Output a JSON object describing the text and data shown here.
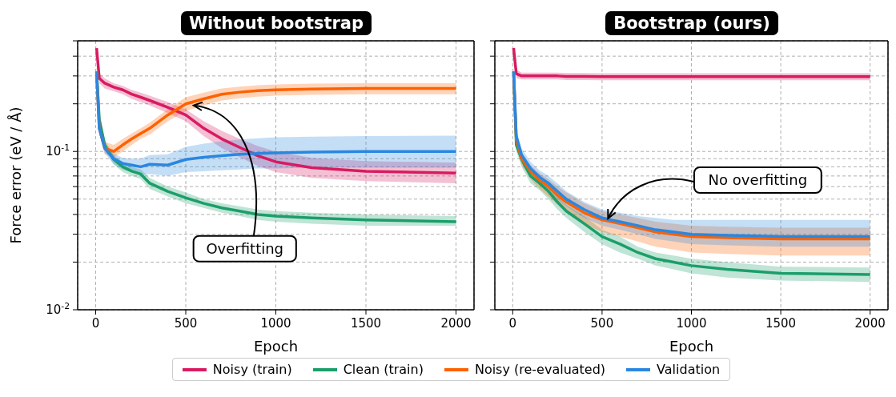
{
  "chart_data": [
    {
      "type": "line",
      "title": "Without bootstrap",
      "xlabel": "Epoch",
      "ylabel": "Force error (eV / Å)",
      "log": "y",
      "grid": true,
      "legend": "bottom",
      "xlim": [
        -100,
        2100
      ],
      "xticks": [
        0,
        500,
        1000,
        1500,
        2000
      ],
      "ylim": [
        0.01,
        0.5
      ],
      "yticks": [
        {
          "value": 0.01,
          "label": "10$^{-2}$"
        },
        {
          "value": 0.02,
          "label": null
        },
        {
          "value": 0.03,
          "label": null
        },
        {
          "value": 0.04,
          "label": null
        },
        {
          "value": 0.05,
          "label": null
        },
        {
          "value": 0.06,
          "label": null
        },
        {
          "value": 0.07,
          "label": null
        },
        {
          "value": 0.08,
          "label": null
        },
        {
          "value": 0.09,
          "label": null
        },
        {
          "value": 0.1,
          "label": "10$^{-1}$"
        },
        {
          "value": 0.2,
          "label": null
        },
        {
          "value": 0.3,
          "label": null
        },
        {
          "value": 0.4,
          "label": null
        },
        {
          "value": 0.5,
          "label": null
        }
      ],
      "x": [
        5,
        20,
        50,
        100,
        150,
        200,
        250,
        300,
        400,
        500,
        600,
        700,
        800,
        900,
        1000,
        1200,
        1500,
        2000
      ],
      "series": [
        {
          "name": "Noisy (train)",
          "color": "#d81b60",
          "values": [
            0.45,
            0.29,
            0.27,
            0.255,
            0.245,
            0.23,
            0.22,
            0.21,
            0.19,
            0.17,
            0.14,
            0.12,
            0.106,
            0.094,
            0.086,
            0.079,
            0.075,
            0.073
          ],
          "lower": [
            0.42,
            0.27,
            0.25,
            0.24,
            0.23,
            0.215,
            0.205,
            0.195,
            0.175,
            0.155,
            0.125,
            0.105,
            0.092,
            0.081,
            0.074,
            0.068,
            0.065,
            0.063
          ],
          "upper": [
            0.48,
            0.31,
            0.29,
            0.27,
            0.26,
            0.245,
            0.235,
            0.225,
            0.205,
            0.185,
            0.155,
            0.135,
            0.12,
            0.108,
            0.1,
            0.091,
            0.087,
            0.085
          ]
        },
        {
          "name": "Clean (train)",
          "color": "#1b9e6a",
          "values": [
            0.32,
            0.16,
            0.11,
            0.089,
            0.08,
            0.075,
            0.072,
            0.063,
            0.056,
            0.051,
            0.047,
            0.044,
            0.042,
            0.04,
            0.039,
            0.038,
            0.037,
            0.036
          ],
          "lower": [
            0.3,
            0.15,
            0.102,
            0.083,
            0.074,
            0.07,
            0.067,
            0.058,
            0.052,
            0.047,
            0.044,
            0.041,
            0.039,
            0.037,
            0.036,
            0.035,
            0.034,
            0.034
          ],
          "upper": [
            0.34,
            0.17,
            0.118,
            0.095,
            0.086,
            0.08,
            0.077,
            0.068,
            0.06,
            0.055,
            0.05,
            0.047,
            0.045,
            0.043,
            0.042,
            0.041,
            0.04,
            0.039
          ]
        },
        {
          "name": "Noisy (re-evaluated)",
          "color": "#fe6100",
          "values": [
            0.32,
            0.14,
            0.105,
            0.1,
            0.11,
            0.12,
            0.13,
            0.14,
            0.17,
            0.2,
            0.215,
            0.23,
            0.237,
            0.242,
            0.245,
            0.248,
            0.25,
            0.25
          ],
          "lower": [
            0.29,
            0.13,
            0.096,
            0.092,
            0.1,
            0.11,
            0.12,
            0.128,
            0.155,
            0.18,
            0.195,
            0.21,
            0.217,
            0.222,
            0.225,
            0.228,
            0.23,
            0.23
          ],
          "upper": [
            0.35,
            0.155,
            0.115,
            0.11,
            0.12,
            0.13,
            0.14,
            0.152,
            0.185,
            0.22,
            0.235,
            0.25,
            0.257,
            0.262,
            0.265,
            0.268,
            0.27,
            0.27
          ]
        },
        {
          "name": "Validation",
          "color": "#2a87e0",
          "values": [
            0.32,
            0.14,
            0.105,
            0.09,
            0.084,
            0.082,
            0.08,
            0.083,
            0.082,
            0.089,
            0.092,
            0.094,
            0.096,
            0.097,
            0.098,
            0.099,
            0.1,
            0.1
          ],
          "lower": [
            0.3,
            0.13,
            0.098,
            0.083,
            0.077,
            0.074,
            0.071,
            0.072,
            0.07,
            0.074,
            0.075,
            0.076,
            0.077,
            0.078,
            0.078,
            0.079,
            0.079,
            0.079
          ],
          "upper": [
            0.34,
            0.15,
            0.112,
            0.097,
            0.091,
            0.09,
            0.09,
            0.095,
            0.096,
            0.107,
            0.112,
            0.116,
            0.119,
            0.121,
            0.123,
            0.124,
            0.125,
            0.126
          ]
        }
      ],
      "annotations": [
        {
          "text": "Overfitting",
          "x": 530,
          "y": 0.2
        }
      ]
    },
    {
      "type": "line",
      "title": "Bootstrap (ours)",
      "xlabel": "Epoch",
      "log": "y",
      "grid": true,
      "legend": "bottom",
      "tick_labels": "x",
      "xlim": [
        -100,
        2100
      ],
      "xticks": [
        0,
        500,
        1000,
        1500,
        2000
      ],
      "ylim": [
        0.01,
        0.5
      ],
      "yticks": [
        {
          "value": 0.01,
          "label": null
        },
        {
          "value": 0.02,
          "label": null
        },
        {
          "value": 0.03,
          "label": null
        },
        {
          "value": 0.04,
          "label": null
        },
        {
          "value": 0.05,
          "label": null
        },
        {
          "value": 0.06,
          "label": null
        },
        {
          "value": 0.07,
          "label": null
        },
        {
          "value": 0.08,
          "label": null
        },
        {
          "value": 0.09,
          "label": null
        },
        {
          "value": 0.1,
          "label": null
        },
        {
          "value": 0.2,
          "label": null
        },
        {
          "value": 0.3,
          "label": null
        },
        {
          "value": 0.4,
          "label": null
        },
        {
          "value": 0.5,
          "label": null
        }
      ],
      "x": [
        5,
        20,
        50,
        100,
        150,
        200,
        250,
        300,
        400,
        500,
        600,
        700,
        800,
        900,
        1000,
        1200,
        1500,
        2000
      ],
      "series": [
        {
          "name": "Noisy (train)",
          "color": "#d81b60",
          "values": [
            0.45,
            0.31,
            0.3,
            0.3,
            0.3,
            0.3,
            0.3,
            0.298,
            0.298,
            0.297,
            0.297,
            0.297,
            0.297,
            0.297,
            0.297,
            0.297,
            0.297,
            0.297
          ],
          "lower": [
            0.43,
            0.29,
            0.285,
            0.285,
            0.285,
            0.285,
            0.285,
            0.283,
            0.283,
            0.282,
            0.282,
            0.282,
            0.282,
            0.282,
            0.282,
            0.282,
            0.282,
            0.282
          ],
          "upper": [
            0.47,
            0.33,
            0.315,
            0.315,
            0.315,
            0.315,
            0.315,
            0.313,
            0.313,
            0.312,
            0.312,
            0.312,
            0.312,
            0.312,
            0.312,
            0.312,
            0.312,
            0.312
          ]
        },
        {
          "name": "Clean (train)",
          "color": "#1b9e6a",
          "values": [
            0.32,
            0.11,
            0.089,
            0.07,
            0.063,
            0.056,
            0.048,
            0.042,
            0.035,
            0.029,
            0.026,
            0.023,
            0.021,
            0.02,
            0.019,
            0.018,
            0.017,
            0.0167
          ],
          "lower": [
            0.29,
            0.1,
            0.08,
            0.063,
            0.057,
            0.05,
            0.043,
            0.038,
            0.031,
            0.026,
            0.023,
            0.021,
            0.019,
            0.018,
            0.017,
            0.016,
            0.0153,
            0.015
          ],
          "upper": [
            0.35,
            0.12,
            0.098,
            0.077,
            0.069,
            0.062,
            0.053,
            0.046,
            0.039,
            0.032,
            0.029,
            0.025,
            0.023,
            0.022,
            0.021,
            0.02,
            0.0187,
            0.0185
          ]
        },
        {
          "name": "Noisy (re-evaluated)",
          "color": "#fe6100",
          "values": [
            0.32,
            0.12,
            0.09,
            0.075,
            0.066,
            0.06,
            0.053,
            0.048,
            0.041,
            0.037,
            0.035,
            0.033,
            0.031,
            0.03,
            0.029,
            0.0285,
            0.028,
            0.028
          ],
          "lower": [
            0.29,
            0.11,
            0.082,
            0.067,
            0.058,
            0.052,
            0.046,
            0.041,
            0.035,
            0.031,
            0.029,
            0.027,
            0.025,
            0.024,
            0.023,
            0.0225,
            0.022,
            0.022
          ],
          "upper": [
            0.35,
            0.13,
            0.098,
            0.082,
            0.073,
            0.067,
            0.06,
            0.055,
            0.047,
            0.042,
            0.04,
            0.038,
            0.036,
            0.035,
            0.034,
            0.0335,
            0.033,
            0.033
          ]
        },
        {
          "name": "Validation",
          "color": "#2a87e0",
          "values": [
            0.32,
            0.125,
            0.095,
            0.078,
            0.069,
            0.063,
            0.056,
            0.05,
            0.043,
            0.038,
            0.036,
            0.034,
            0.032,
            0.031,
            0.03,
            0.0295,
            0.029,
            0.029
          ],
          "lower": [
            0.3,
            0.115,
            0.087,
            0.071,
            0.063,
            0.057,
            0.05,
            0.045,
            0.038,
            0.034,
            0.032,
            0.03,
            0.028,
            0.027,
            0.026,
            0.0255,
            0.025,
            0.025
          ],
          "upper": [
            0.34,
            0.135,
            0.104,
            0.086,
            0.076,
            0.07,
            0.063,
            0.056,
            0.048,
            0.043,
            0.041,
            0.039,
            0.038,
            0.037,
            0.037,
            0.037,
            0.037,
            0.037
          ]
        }
      ],
      "annotations": [
        {
          "text": "No overfitting",
          "x": 520,
          "y": 0.036
        }
      ]
    }
  ]
}
